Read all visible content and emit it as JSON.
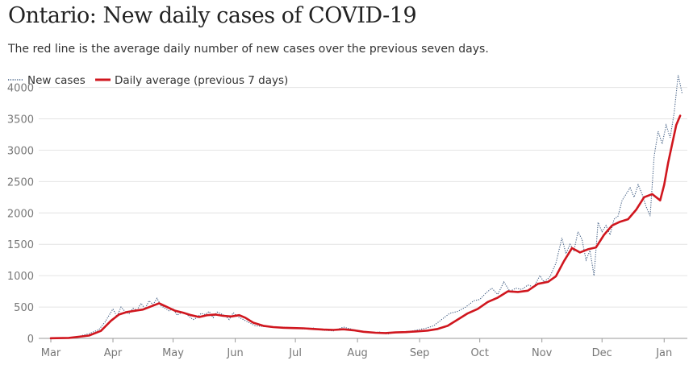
{
  "chart_data": {
    "type": "line",
    "title": "Ontario: New daily cases of COVID-19",
    "subtitle": "The red line is the average daily number of new cases over the previous seven days.",
    "xlabel": "",
    "ylabel": "",
    "ylim": [
      0,
      4200
    ],
    "yticks": [
      "0",
      "500",
      "1000",
      "1500",
      "2000",
      "2500",
      "3000",
      "3500",
      "4000"
    ],
    "xticks": [
      "Mar",
      "Apr",
      "May",
      "Jun",
      "Jul",
      "Aug",
      "Sep",
      "Oct",
      "Nov",
      "Dec",
      "Jan"
    ],
    "grid": true,
    "legend_position": "top-left",
    "colors": {
      "new_cases": "#3d5a80",
      "average": "#d0161e"
    },
    "series": [
      {
        "name": "New cases",
        "style": "dotted",
        "x": [
          "2020-03-01",
          "2020-03-05",
          "2020-03-10",
          "2020-03-15",
          "2020-03-20",
          "2020-03-25",
          "2020-03-28",
          "2020-04-01",
          "2020-04-03",
          "2020-04-05",
          "2020-04-07",
          "2020-04-09",
          "2020-04-11",
          "2020-04-13",
          "2020-04-15",
          "2020-04-17",
          "2020-04-19",
          "2020-04-21",
          "2020-04-23",
          "2020-04-25",
          "2020-04-27",
          "2020-04-29",
          "2020-05-01",
          "2020-05-03",
          "2020-05-05",
          "2020-05-07",
          "2020-05-09",
          "2020-05-11",
          "2020-05-13",
          "2020-05-15",
          "2020-05-17",
          "2020-05-19",
          "2020-05-21",
          "2020-05-23",
          "2020-05-25",
          "2020-05-27",
          "2020-05-29",
          "2020-05-31",
          "2020-06-02",
          "2020-06-05",
          "2020-06-08",
          "2020-06-11",
          "2020-06-15",
          "2020-06-20",
          "2020-06-25",
          "2020-06-30",
          "2020-07-05",
          "2020-07-10",
          "2020-07-15",
          "2020-07-20",
          "2020-07-25",
          "2020-07-30",
          "2020-08-04",
          "2020-08-08",
          "2020-08-12",
          "2020-08-16",
          "2020-08-20",
          "2020-08-25",
          "2020-08-30",
          "2020-09-04",
          "2020-09-08",
          "2020-09-12",
          "2020-09-16",
          "2020-09-20",
          "2020-09-24",
          "2020-09-28",
          "2020-10-01",
          "2020-10-04",
          "2020-10-07",
          "2020-10-10",
          "2020-10-13",
          "2020-10-16",
          "2020-10-19",
          "2020-10-22",
          "2020-10-25",
          "2020-10-28",
          "2020-10-31",
          "2020-11-02",
          "2020-11-05",
          "2020-11-08",
          "2020-11-11",
          "2020-11-13",
          "2020-11-15",
          "2020-11-17",
          "2020-11-19",
          "2020-11-21",
          "2020-11-23",
          "2020-11-25",
          "2020-11-27",
          "2020-11-29",
          "2020-12-01",
          "2020-12-03",
          "2020-12-05",
          "2020-12-07",
          "2020-12-09",
          "2020-12-11",
          "2020-12-13",
          "2020-12-15",
          "2020-12-17",
          "2020-12-19",
          "2020-12-21",
          "2020-12-23",
          "2020-12-25",
          "2020-12-27",
          "2020-12-29",
          "2020-12-31",
          "2021-01-02",
          "2021-01-04",
          "2021-01-06",
          "2021-01-08",
          "2021-01-10"
        ],
        "values": [
          5,
          8,
          12,
          32,
          75,
          140,
          260,
          470,
          350,
          500,
          430,
          390,
          480,
          450,
          560,
          470,
          600,
          540,
          640,
          520,
          480,
          440,
          470,
          370,
          410,
          400,
          350,
          300,
          330,
          400,
          380,
          430,
          330,
          420,
          390,
          360,
          300,
          410,
          350,
          300,
          250,
          200,
          190,
          175,
          180,
          160,
          150,
          165,
          130,
          120,
          180,
          140,
          110,
          90,
          100,
          70,
          100,
          90,
          130,
          160,
          200,
          300,
          400,
          430,
          500,
          600,
          620,
          720,
          800,
          700,
          900,
          750,
          800,
          780,
          850,
          820,
          1000,
          900,
          980,
          1200,
          1600,
          1350,
          1500,
          1400,
          1700,
          1580,
          1250,
          1400,
          1000,
          1850,
          1700,
          1800,
          1650,
          1900,
          1950,
          2200,
          2300,
          2400,
          2250,
          2450,
          2300,
          2100,
          1950,
          2900,
          3300,
          3100,
          3400,
          3200,
          3600,
          4200,
          3900
        ]
      },
      {
        "name": "Daily average (previous 7 days)",
        "style": "solid",
        "x": [
          "2020-03-01",
          "2020-03-10",
          "2020-03-20",
          "2020-03-26",
          "2020-03-31",
          "2020-04-04",
          "2020-04-08",
          "2020-04-12",
          "2020-04-16",
          "2020-04-20",
          "2020-04-24",
          "2020-04-28",
          "2020-05-02",
          "2020-05-06",
          "2020-05-10",
          "2020-05-14",
          "2020-05-18",
          "2020-05-22",
          "2020-05-26",
          "2020-05-30",
          "2020-06-03",
          "2020-06-06",
          "2020-06-10",
          "2020-06-15",
          "2020-06-20",
          "2020-06-25",
          "2020-06-30",
          "2020-07-05",
          "2020-07-10",
          "2020-07-15",
          "2020-07-20",
          "2020-07-25",
          "2020-07-30",
          "2020-08-04",
          "2020-08-10",
          "2020-08-15",
          "2020-08-20",
          "2020-08-25",
          "2020-08-30",
          "2020-09-05",
          "2020-09-10",
          "2020-09-15",
          "2020-09-20",
          "2020-09-25",
          "2020-09-30",
          "2020-10-05",
          "2020-10-10",
          "2020-10-15",
          "2020-10-20",
          "2020-10-25",
          "2020-10-30",
          "2020-11-04",
          "2020-11-08",
          "2020-11-12",
          "2020-11-16",
          "2020-11-20",
          "2020-11-24",
          "2020-11-28",
          "2020-12-02",
          "2020-12-06",
          "2020-12-10",
          "2020-12-14",
          "2020-12-18",
          "2020-12-22",
          "2020-12-26",
          "2020-12-30",
          "2021-01-01",
          "2021-01-03",
          "2021-01-05",
          "2021-01-07",
          "2021-01-09"
        ],
        "values": [
          2,
          8,
          45,
          120,
          280,
          380,
          420,
          440,
          460,
          510,
          560,
          500,
          440,
          410,
          370,
          340,
          370,
          380,
          360,
          350,
          370,
          330,
          250,
          200,
          180,
          170,
          165,
          160,
          150,
          140,
          135,
          145,
          130,
          105,
          90,
          85,
          95,
          100,
          110,
          125,
          150,
          200,
          300,
          400,
          470,
          580,
          650,
          750,
          740,
          760,
          870,
          900,
          990,
          1230,
          1440,
          1370,
          1420,
          1450,
          1650,
          1800,
          1860,
          1900,
          2050,
          2250,
          2300,
          2200,
          2450,
          2800,
          3100,
          3400,
          3550
        ]
      }
    ]
  }
}
